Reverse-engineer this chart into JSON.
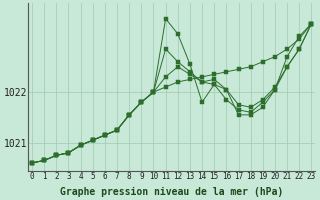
{
  "xlabel": "Graphe pression niveau de la mer (hPa)",
  "bg_color": "#c8e8d8",
  "grid_color": "#a0c8b0",
  "line_color": "#2d6e2d",
  "marker_color": "#2d6e2d",
  "yticks": [
    1021,
    1022
  ],
  "ylim": [
    1020.45,
    1023.75
  ],
  "xlim": [
    -0.3,
    23.3
  ],
  "xtick_labels": [
    "0",
    "1",
    "2",
    "3",
    "4",
    "5",
    "6",
    "7",
    "8",
    "9",
    "10",
    "11",
    "12",
    "13",
    "14",
    "15",
    "16",
    "17",
    "18",
    "19",
    "20",
    "21",
    "22",
    "23"
  ],
  "series": [
    [
      1020.6,
      1020.65,
      1020.75,
      1020.8,
      1020.95,
      1021.05,
      1021.15,
      1021.25,
      1021.55,
      1021.8,
      1022.0,
      1023.45,
      1023.15,
      1022.55,
      1021.8,
      1022.15,
      1022.05,
      1021.55,
      1021.55,
      1021.7,
      1022.05,
      1022.7,
      1023.1,
      1023.35
    ],
    [
      1020.6,
      1020.65,
      1020.75,
      1020.8,
      1020.95,
      1021.05,
      1021.15,
      1021.25,
      1021.55,
      1021.8,
      1022.0,
      1022.85,
      1022.6,
      1022.4,
      1022.2,
      1022.25,
      1022.05,
      1021.75,
      1021.7,
      1021.85,
      1022.1,
      1022.5,
      1022.85,
      1023.35
    ],
    [
      1020.6,
      1020.65,
      1020.75,
      1020.8,
      1020.95,
      1021.05,
      1021.15,
      1021.25,
      1021.55,
      1021.8,
      1022.0,
      1022.3,
      1022.5,
      1022.35,
      1022.2,
      1022.15,
      1021.85,
      1021.65,
      1021.6,
      1021.8,
      1022.05,
      1022.5,
      1022.85,
      1023.35
    ],
    [
      1020.6,
      1020.65,
      1020.75,
      1020.8,
      1020.95,
      1021.05,
      1021.15,
      1021.25,
      1021.55,
      1021.8,
      1022.0,
      1022.1,
      1022.2,
      1022.25,
      1022.3,
      1022.35,
      1022.4,
      1022.45,
      1022.5,
      1022.6,
      1022.7,
      1022.85,
      1023.05,
      1023.35
    ]
  ],
  "font_size_xlabel": 7,
  "font_size_ytick": 7,
  "font_size_xtick": 5.5,
  "linewidth": 0.7,
  "markersize": 2.2
}
